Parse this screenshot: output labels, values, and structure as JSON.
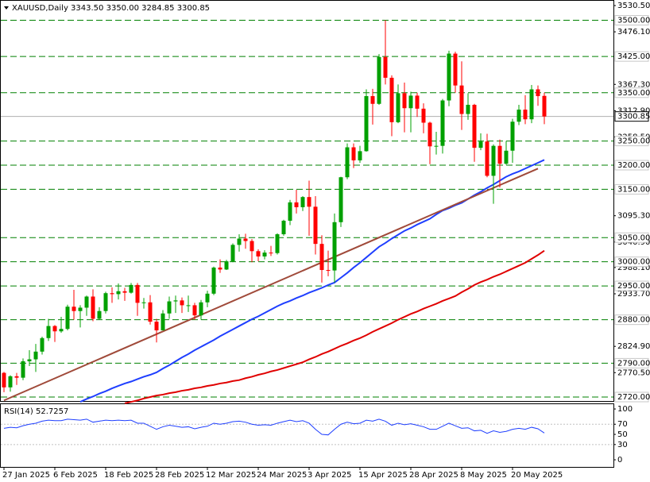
{
  "chart_data": [
    {
      "type": "candlestick",
      "symbol": "XAUUSD,Daily",
      "ohlc_labels": [
        "3343.50",
        "3350.00",
        "3284.85",
        "3300.85"
      ],
      "up_color": "#00a000",
      "down_color": "#ff0000",
      "categories": [
        "27 Jan 2025",
        null,
        null,
        null,
        null,
        null,
        null,
        null,
        "6 Feb 2025",
        null,
        null,
        null,
        null,
        null,
        null,
        null,
        "18 Feb 2025",
        null,
        null,
        null,
        null,
        null,
        null,
        null,
        "28 Feb 2025",
        null,
        null,
        null,
        null,
        null,
        null,
        null,
        "12 Mar 2025",
        null,
        null,
        null,
        null,
        null,
        null,
        null,
        "24 Mar 2025",
        null,
        null,
        null,
        null,
        null,
        null,
        null,
        "3 Apr 2025",
        null,
        null,
        null,
        null,
        null,
        null,
        null,
        "15 Apr 2025",
        null,
        null,
        null,
        null,
        null,
        null,
        null,
        "28 Apr 2025",
        null,
        null,
        null,
        null,
        null,
        null,
        null,
        "8 May 2025",
        null,
        null,
        null,
        null,
        null,
        null,
        null,
        "20 May 2025",
        null,
        null,
        null,
        null,
        null
      ],
      "open": [
        2770,
        2740,
        2763,
        2760,
        2794,
        2798,
        2814,
        2842,
        2867,
        2856,
        2861,
        2907,
        2898,
        2905,
        2928,
        2882,
        2898,
        2935,
        2933,
        2939,
        2936,
        2952,
        2915,
        2916,
        2876,
        2858,
        2893,
        2918,
        2920,
        2910,
        2910,
        2889,
        2916,
        2934,
        2988,
        2984,
        3001,
        3035,
        3048,
        3043,
        3022,
        3011,
        3019,
        3018,
        3057,
        3085,
        3123,
        3113,
        3134,
        3114,
        3037,
        2983,
        2982,
        3082,
        3175,
        3237,
        3210,
        3229,
        3343,
        3327,
        3424,
        3381,
        3289,
        3349,
        3318,
        3344,
        3317,
        3288,
        3239,
        3240,
        3334,
        3431,
        3365,
        3306,
        3325,
        3236,
        3249,
        3178,
        3240,
        3203,
        3230,
        3290,
        3315,
        3295,
        3357,
        3343.5
      ],
      "high": [
        2772,
        2765,
        2770,
        2800,
        2817,
        2830,
        2845,
        2882,
        2869,
        2886,
        2911,
        2942,
        2910,
        2930,
        2943,
        2906,
        2938,
        2947,
        2955,
        2946,
        2956,
        2956,
        2925,
        2931,
        2882,
        2900,
        2928,
        2930,
        2926,
        2930,
        2915,
        2921,
        2940,
        2990,
        3005,
        3004,
        3038,
        3057,
        3058,
        3047,
        3026,
        3024,
        3033,
        3059,
        3087,
        3128,
        3149,
        3136,
        3168,
        3136,
        3055,
        3023,
        3100,
        3176,
        3245,
        3245,
        3240,
        3357,
        3358,
        3430,
        3500,
        3386,
        3367,
        3371,
        3352,
        3350,
        3328,
        3290,
        3269,
        3337,
        3437,
        3435,
        3415,
        3349,
        3327,
        3266,
        3265,
        3243,
        3253,
        3250,
        3296,
        3325,
        3345,
        3366,
        3365,
        3350
      ],
      "low": [
        2730,
        2731,
        2745,
        2755,
        2784,
        2772,
        2808,
        2836,
        2834,
        2853,
        2858,
        2880,
        2864,
        2888,
        2877,
        2880,
        2893,
        2915,
        2922,
        2919,
        2934,
        2888,
        2903,
        2870,
        2833,
        2858,
        2882,
        2894,
        2894,
        2896,
        2880,
        2880,
        2906,
        2931,
        2977,
        2983,
        2999,
        3021,
        3027,
        2999,
        3001,
        3005,
        3012,
        3015,
        3054,
        3076,
        3100,
        3105,
        3054,
        3015,
        2957,
        2970,
        2957,
        3072,
        3171,
        3194,
        3205,
        3228,
        3284,
        3325,
        3367,
        3260,
        3287,
        3268,
        3268,
        3300,
        3266,
        3202,
        3222,
        3224,
        3322,
        3350,
        3273,
        3294,
        3207,
        3231,
        3175,
        3120,
        3154,
        3201,
        3205,
        3283,
        3285,
        3287,
        3323,
        3284.85
      ],
      "close": [
        2740,
        2763,
        2760,
        2794,
        2798,
        2814,
        2842,
        2867,
        2856,
        2861,
        2907,
        2898,
        2905,
        2928,
        2882,
        2898,
        2935,
        2933,
        2939,
        2936,
        2952,
        2915,
        2916,
        2876,
        2858,
        2893,
        2918,
        2920,
        2910,
        2910,
        2889,
        2916,
        2934,
        2988,
        2984,
        3001,
        3035,
        3048,
        3043,
        3022,
        3011,
        3019,
        3018,
        3057,
        3085,
        3123,
        3113,
        3134,
        3114,
        3037,
        2983,
        2982,
        3082,
        3175,
        3237,
        3210,
        3229,
        3343,
        3327,
        3424,
        3381,
        3289,
        3349,
        3318,
        3344,
        3317,
        3288,
        3239,
        3240,
        3334,
        3431,
        3365,
        3306,
        3325,
        3236,
        3249,
        3178,
        3240,
        3203,
        3230,
        3290,
        3315,
        3295,
        3357,
        3343,
        3300.85
      ],
      "overlays": [
        {
          "color": "#1f3fff",
          "values": [
            null,
            null,
            null,
            null,
            null,
            null,
            null,
            null,
            null,
            null,
            null,
            null,
            2710,
            2716,
            2721,
            2727,
            2732,
            2738,
            2743,
            2748,
            2752,
            2757,
            2762,
            2766,
            2771,
            2779,
            2786,
            2794,
            2802,
            2809,
            2817,
            2824,
            2831,
            2838,
            2846,
            2853,
            2860,
            2867,
            2874,
            2881,
            2887,
            2894,
            2901,
            2908,
            2914,
            2919,
            2925,
            2930,
            2936,
            2941,
            2946,
            2952,
            2957,
            2967,
            2977,
            2988,
            2998,
            3009,
            3020,
            3031,
            3039,
            3048,
            3056,
            3064,
            3070,
            3077,
            3083,
            3089,
            3098,
            3106,
            3111,
            3117,
            3122,
            3130,
            3138,
            3145,
            3153,
            3160,
            3168,
            3176,
            3182,
            3187,
            3193,
            3199,
            3205,
            3211
          ]
        },
        {
          "color": "#e00000",
          "values": [
            null,
            null,
            null,
            null,
            null,
            null,
            null,
            null,
            null,
            null,
            null,
            null,
            null,
            null,
            null,
            null,
            null,
            null,
            null,
            2707,
            2710,
            2713,
            2717,
            2720,
            2723,
            2725,
            2728,
            2730,
            2733,
            2735,
            2738,
            2740,
            2743,
            2745,
            2748,
            2750,
            2753,
            2755,
            2759,
            2762,
            2766,
            2769,
            2773,
            2776,
            2780,
            2784,
            2788,
            2792,
            2798,
            2803,
            2809,
            2814,
            2820,
            2826,
            2831,
            2837,
            2842,
            2848,
            2855,
            2861,
            2867,
            2873,
            2880,
            2886,
            2892,
            2897,
            2903,
            2908,
            2913,
            2919,
            2924,
            2929,
            2937,
            2944,
            2952,
            2958,
            2963,
            2969,
            2974,
            2980,
            2986,
            2992,
            2998,
            3006,
            3014,
            3023
          ]
        }
      ],
      "trendline": {
        "color": "#a04a3a",
        "x": [
          0,
          84
        ],
        "values": [
          2713,
          3193
        ]
      },
      "levels": [
        {
          "value": 3500,
          "label": "3500.00"
        },
        {
          "value": 3425,
          "label": "3425.00"
        },
        {
          "value": 3350,
          "label": "3350.00"
        },
        {
          "value": 3250,
          "label": "3250.00"
        },
        {
          "value": 3200,
          "label": "3200.00"
        },
        {
          "value": 3150,
          "label": "3150.00"
        },
        {
          "value": 3050,
          "label": "3050.00"
        },
        {
          "value": 3000,
          "label": "3000.00"
        },
        {
          "value": 2950,
          "label": "2950.00"
        },
        {
          "value": 2880,
          "label": "2880.00"
        },
        {
          "value": 2790,
          "label": "2790.00"
        },
        {
          "value": 2720,
          "label": "2720.00"
        }
      ],
      "level_color": "#008000",
      "ylim": [
        2710.1,
        3538.7
      ],
      "yticks": [
        {
          "value": 3530.5,
          "label": "3530.50"
        },
        {
          "value": 3476.1,
          "label": "3476.10"
        },
        {
          "value": 3367.3,
          "label": "3367.30"
        },
        {
          "value": 3312.9,
          "label": "3312.90"
        },
        {
          "value": 3258.5,
          "label": "3258.50"
        },
        {
          "value": 3095.3,
          "label": "3095.30"
        },
        {
          "value": 3040.9,
          "label": "3040.90"
        },
        {
          "value": 2988.1,
          "label": "2988.10"
        },
        {
          "value": 2933.7,
          "label": "2933.70"
        },
        {
          "value": 2824.9,
          "label": "2824.90"
        },
        {
          "value": 2770.5,
          "label": "2770.50"
        }
      ]
    },
    {
      "type": "line",
      "name": "RSI(14)",
      "color": "#1f3fff",
      "values": [
        62,
        64,
        63,
        67,
        70,
        72,
        76,
        78,
        77,
        77,
        80,
        79,
        78,
        80,
        74,
        76,
        78,
        77,
        78,
        77,
        78,
        72,
        72,
        66,
        60,
        65,
        68,
        66,
        64,
        65,
        61,
        64,
        66,
        72,
        70,
        72,
        75,
        76,
        74,
        70,
        68,
        69,
        68,
        72,
        75,
        78,
        75,
        77,
        72,
        60,
        50,
        49,
        60,
        70,
        74,
        71,
        72,
        78,
        76,
        80,
        76,
        68,
        72,
        69,
        71,
        68,
        65,
        60,
        60,
        66,
        72,
        67,
        62,
        63,
        57,
        58,
        52,
        57,
        54,
        56,
        60,
        62,
        60,
        64,
        61,
        52.7257
      ],
      "levels": [
        70,
        30
      ],
      "ylim": [
        -14,
        111
      ],
      "yticks": [
        100,
        70,
        50,
        30,
        0
      ]
    }
  ]
}
